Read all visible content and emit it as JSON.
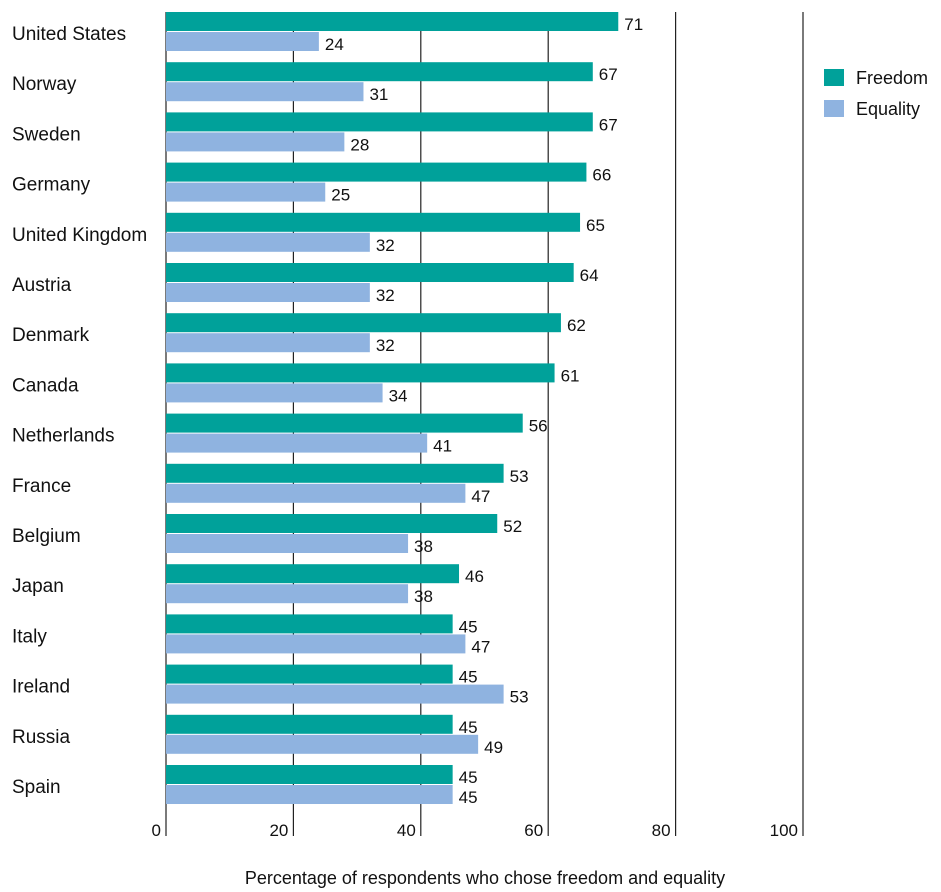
{
  "chart_data": {
    "type": "bar",
    "orientation": "horizontal",
    "title": "",
    "xlabel": "Percentage of respondents who chose freedom and equality",
    "ylabel": "",
    "xlim": [
      0,
      100
    ],
    "xticks": [
      0,
      20,
      40,
      60,
      80,
      100
    ],
    "grid": true,
    "legend_position": "top-right",
    "categories": [
      "United States",
      "Norway",
      "Sweden",
      "Germany",
      "United Kingdom",
      "Austria",
      "Denmark",
      "Canada",
      "Netherlands",
      "France",
      "Belgium",
      "Japan",
      "Italy",
      "Ireland",
      "Russia",
      "Spain"
    ],
    "series": [
      {
        "name": "Freedom",
        "color": "#00a19a",
        "values": [
          71,
          67,
          67,
          66,
          65,
          64,
          62,
          61,
          56,
          53,
          52,
          46,
          45,
          45,
          45,
          45
        ]
      },
      {
        "name": "Equality",
        "color": "#8fb3e0",
        "values": [
          24,
          31,
          28,
          25,
          32,
          32,
          32,
          34,
          41,
          47,
          38,
          38,
          47,
          53,
          49,
          45
        ]
      }
    ]
  }
}
